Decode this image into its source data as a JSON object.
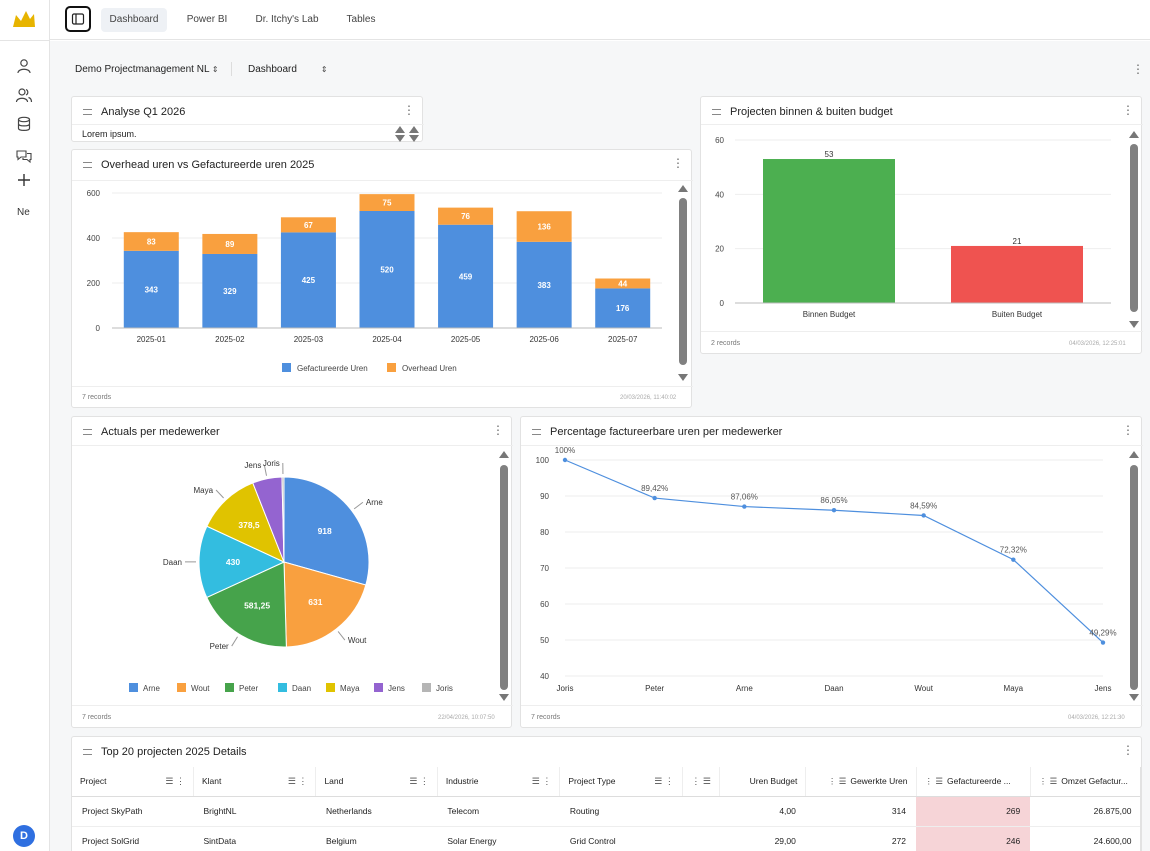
{
  "sidebar": {
    "nav_text": "Ne",
    "avatar": "D"
  },
  "topbar": {
    "tabs": [
      "Dashboard",
      "Power BI",
      "Dr. Itchy's Lab",
      "Tables"
    ]
  },
  "header": {
    "project_select": "Demo Projectmanagement NL",
    "view_select": "Dashboard"
  },
  "panels": {
    "analyse": {
      "title": "Analyse Q1 2026",
      "text": "Lorem ipsum."
    },
    "overhead": {
      "title": "Overhead uren vs Gefactureerde uren 2025",
      "records": "7 records",
      "timestamp": "20/03/2026, 11:40:02"
    },
    "budget": {
      "title": "Projecten binnen & buiten budget",
      "records": "2 records",
      "timestamp": "04/03/2026, 12:25:01"
    },
    "actuals": {
      "title": "Actuals per medewerker",
      "records": "7 records",
      "timestamp": "22/04/2026, 10:07:50"
    },
    "percentage": {
      "title": "Percentage factureerbare uren per medewerker",
      "records": "7 records",
      "timestamp": "04/03/2026, 12:21:30"
    },
    "top20": {
      "title": "Top 20 projecten 2025 Details"
    }
  },
  "chart_data": [
    {
      "type": "bar",
      "stacked": true,
      "categories": [
        "2025-01",
        "2025-02",
        "2025-03",
        "2025-04",
        "2025-05",
        "2025-06",
        "2025-07"
      ],
      "series": [
        {
          "name": "Gefactureerde Uren",
          "color": "#4e8fde",
          "values": [
            343,
            329,
            425,
            520,
            459,
            383,
            176
          ]
        },
        {
          "name": "Overhead Uren",
          "color": "#f9a03f",
          "values": [
            83,
            89,
            67,
            75,
            76,
            136,
            44
          ]
        }
      ],
      "yticks": [
        0,
        200,
        400,
        600
      ],
      "ylim": [
        0,
        600
      ],
      "legend": "bottom"
    },
    {
      "type": "bar",
      "categories": [
        "Binnen Budget",
        "Buiten Budget"
      ],
      "values": [
        53,
        21
      ],
      "colors": [
        "#4caf50",
        "#ef5350"
      ],
      "yticks": [
        0,
        20,
        40,
        60
      ],
      "ylim": [
        0,
        60
      ]
    },
    {
      "type": "pie",
      "labels": [
        "Arne",
        "Wout",
        "Peter",
        "Daan",
        "Maya",
        "Jens",
        "Joris"
      ],
      "values": [
        918,
        631,
        581.25,
        430,
        378.5,
        175,
        12
      ],
      "value_labels": [
        "918",
        "631",
        "581,25",
        "430",
        "378,5",
        "",
        ""
      ],
      "colors": [
        "#4e8fde",
        "#f9a03f",
        "#46a34b",
        "#33bde0",
        "#e0c300",
        "#9464d0",
        "#b5b5b5"
      ],
      "legend": "bottom"
    },
    {
      "type": "line",
      "categories": [
        "Joris",
        "Peter",
        "Arne",
        "Daan",
        "Wout",
        "Maya",
        "Jens"
      ],
      "values": [
        100,
        89.42,
        87.06,
        86.05,
        84.59,
        72.32,
        49.29
      ],
      "value_labels": [
        "100%",
        "89,42%",
        "87,06%",
        "86,05%",
        "84,59%",
        "72,32%",
        "49,29%"
      ],
      "yticks": [
        40,
        50,
        60,
        70,
        80,
        90,
        100
      ],
      "ylim": [
        40,
        100
      ],
      "color": "#4e8fde"
    }
  ],
  "table": {
    "columns": [
      "Project",
      "Klant",
      "Land",
      "Industrie",
      "Project Type",
      "",
      "Uren Budget",
      "Gewerkte Uren",
      "Gefactureerde ...",
      "Omzet Gefactur..."
    ],
    "rows": [
      [
        "Project SkyPath",
        "BrightNL",
        "Netherlands",
        "Telecom",
        "Routing",
        "",
        "4,00",
        "314",
        "269",
        "26.875,00"
      ],
      [
        "Project SolGrid",
        "SintData",
        "Belgium",
        "Solar Energy",
        "Grid Control",
        "",
        "29,00",
        "272",
        "246",
        "24.600,00"
      ]
    ]
  }
}
